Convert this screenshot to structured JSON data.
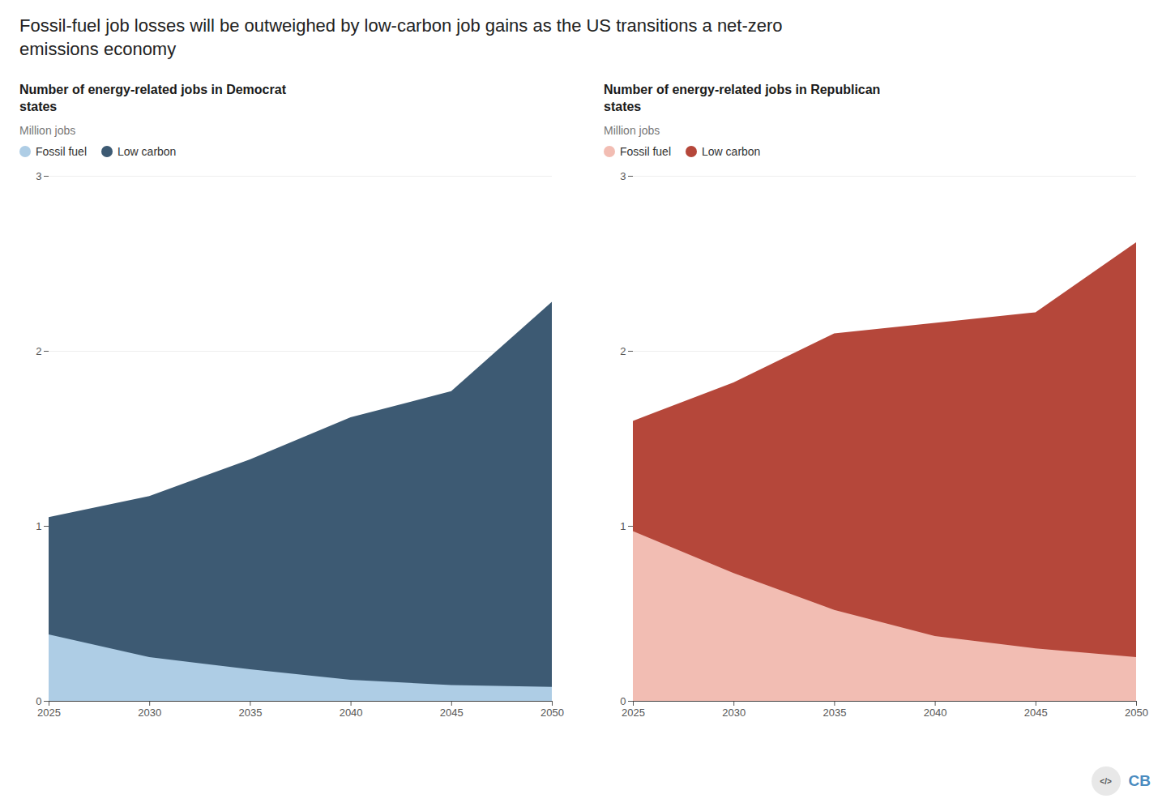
{
  "title": "Fossil-fuel job losses will be outweighed by low-carbon job gains as the US transitions a net-zero\nemissions economy",
  "annotations": [
    {
      "text": "</>"
    },
    {
      "text": "CB",
      "color": "#4a8bbf"
    }
  ],
  "chart_data": [
    {
      "type": "area",
      "title": "Number of energy-related jobs in Democrat\nstates",
      "subtitle": "Million jobs",
      "x": [
        2025,
        2030,
        2035,
        2040,
        2045,
        2050
      ],
      "series": [
        {
          "name": "Fossil fuel",
          "color": "#aecde5",
          "values": [
            0.38,
            0.25,
            0.18,
            0.12,
            0.09,
            0.08
          ]
        },
        {
          "name": "Low carbon",
          "color": "#3d5a73",
          "values": [
            1.05,
            1.17,
            1.38,
            1.62,
            1.77,
            2.28
          ]
        }
      ],
      "stacked": false,
      "xlim": [
        2025,
        2050
      ],
      "xticks": [
        2025,
        2030,
        2035,
        2040,
        2045,
        2050
      ],
      "ylim": [
        0,
        3
      ],
      "yticks": [
        0,
        1,
        2,
        3
      ],
      "grid": true,
      "legend": "top-left"
    },
    {
      "type": "area",
      "title": "Number of energy-related jobs in Republican\nstates",
      "subtitle": "Million jobs",
      "x": [
        2025,
        2030,
        2035,
        2040,
        2045,
        2050
      ],
      "series": [
        {
          "name": "Fossil fuel",
          "color": "#f2bdb3",
          "values": [
            0.97,
            0.73,
            0.52,
            0.37,
            0.3,
            0.25
          ]
        },
        {
          "name": "Low carbon",
          "color": "#b5473a",
          "values": [
            1.6,
            1.82,
            2.1,
            2.16,
            2.22,
            2.62
          ]
        }
      ],
      "stacked": false,
      "xlim": [
        2025,
        2050
      ],
      "xticks": [
        2025,
        2030,
        2035,
        2040,
        2045,
        2050
      ],
      "ylim": [
        0,
        3
      ],
      "yticks": [
        0,
        1,
        2,
        3
      ],
      "grid": true,
      "legend": "top-left"
    }
  ]
}
